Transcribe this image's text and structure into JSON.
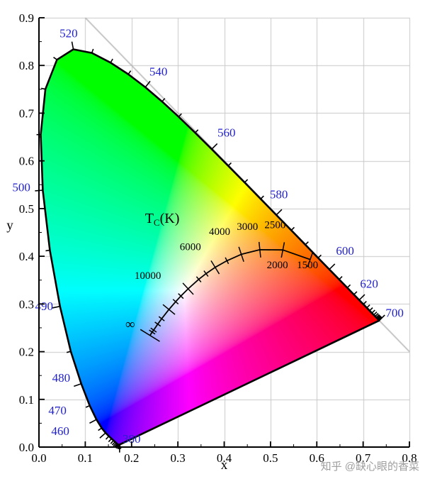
{
  "watermark": "知乎 @缺心眼的香菜",
  "chart_data": {
    "type": "area",
    "subtype": "CIE-1931-chromaticity-diagram",
    "title": "",
    "xlabel": "x",
    "ylabel": "y",
    "xlim": [
      0,
      0.8
    ],
    "ylim": [
      0,
      0.9
    ],
    "x_tick_labels": [
      "0.0",
      "0.1",
      "0.2",
      "0.3",
      "0.4",
      "0.5",
      "0.6",
      "0.7",
      "0.8"
    ],
    "y_tick_labels": [
      "0.0",
      "0.1",
      "0.2",
      "0.3",
      "0.4",
      "0.5",
      "0.6",
      "0.7",
      "0.8",
      "0.9"
    ],
    "grid": true,
    "diagonal_line": {
      "x1": 0.1,
      "y1": 0.9,
      "x2": 0.8,
      "y2": 0.2
    },
    "spectral_locus": [
      [
        380,
        0.1741,
        0.005
      ],
      [
        385,
        0.174,
        0.005
      ],
      [
        390,
        0.1738,
        0.0049
      ],
      [
        395,
        0.1736,
        0.0049
      ],
      [
        400,
        0.1733,
        0.0048
      ],
      [
        405,
        0.173,
        0.0048
      ],
      [
        410,
        0.1726,
        0.0048
      ],
      [
        415,
        0.1721,
        0.0048
      ],
      [
        420,
        0.1714,
        0.0051
      ],
      [
        425,
        0.1703,
        0.0058
      ],
      [
        430,
        0.1689,
        0.0069
      ],
      [
        435,
        0.1669,
        0.0086
      ],
      [
        440,
        0.1644,
        0.0109
      ],
      [
        445,
        0.1611,
        0.0138
      ],
      [
        450,
        0.1566,
        0.0177
      ],
      [
        455,
        0.151,
        0.0227
      ],
      [
        460,
        0.144,
        0.0297
      ],
      [
        465,
        0.1355,
        0.0399
      ],
      [
        470,
        0.1241,
        0.0578
      ],
      [
        475,
        0.1096,
        0.0868
      ],
      [
        480,
        0.0913,
        0.1327
      ],
      [
        485,
        0.0687,
        0.2007
      ],
      [
        490,
        0.0454,
        0.295
      ],
      [
        495,
        0.0235,
        0.4127
      ],
      [
        500,
        0.0082,
        0.5384
      ],
      [
        505,
        0.0039,
        0.6548
      ],
      [
        510,
        0.0139,
        0.7502
      ],
      [
        515,
        0.0389,
        0.812
      ],
      [
        520,
        0.0743,
        0.8338
      ],
      [
        525,
        0.1142,
        0.8262
      ],
      [
        530,
        0.1547,
        0.8059
      ],
      [
        535,
        0.1929,
        0.7816
      ],
      [
        540,
        0.2296,
        0.7543
      ],
      [
        545,
        0.2658,
        0.7243
      ],
      [
        550,
        0.3016,
        0.6923
      ],
      [
        555,
        0.3373,
        0.6589
      ],
      [
        560,
        0.3731,
        0.6245
      ],
      [
        565,
        0.4087,
        0.5896
      ],
      [
        570,
        0.4441,
        0.5547
      ],
      [
        575,
        0.4788,
        0.5202
      ],
      [
        580,
        0.5125,
        0.4866
      ],
      [
        585,
        0.5448,
        0.4544
      ],
      [
        590,
        0.5752,
        0.4242
      ],
      [
        595,
        0.6029,
        0.3965
      ],
      [
        600,
        0.627,
        0.3725
      ],
      [
        605,
        0.6482,
        0.3514
      ],
      [
        610,
        0.6658,
        0.334
      ],
      [
        615,
        0.6801,
        0.3197
      ],
      [
        620,
        0.6915,
        0.3083
      ],
      [
        625,
        0.7006,
        0.2993
      ],
      [
        630,
        0.7079,
        0.292
      ],
      [
        635,
        0.714,
        0.2859
      ],
      [
        640,
        0.719,
        0.2809
      ],
      [
        645,
        0.723,
        0.277
      ],
      [
        650,
        0.726,
        0.274
      ],
      [
        655,
        0.7283,
        0.2717
      ],
      [
        660,
        0.73,
        0.27
      ],
      [
        665,
        0.7311,
        0.2689
      ],
      [
        670,
        0.732,
        0.268
      ],
      [
        675,
        0.7327,
        0.2673
      ],
      [
        680,
        0.7334,
        0.2666
      ],
      [
        685,
        0.734,
        0.266
      ],
      [
        690,
        0.7344,
        0.2656
      ],
      [
        695,
        0.7346,
        0.2654
      ],
      [
        700,
        0.7347,
        0.2653
      ]
    ],
    "wavelength_labels": [
      {
        "text": "380",
        "x": 0.2,
        "y": 0.018
      },
      {
        "text": "460",
        "x": 0.046,
        "y": 0.034
      },
      {
        "text": "470",
        "x": 0.04,
        "y": 0.077
      },
      {
        "text": "480",
        "x": 0.048,
        "y": 0.146
      },
      {
        "text": "490",
        "x": 0.011,
        "y": 0.296
      },
      {
        "text": "500",
        "x": -0.038,
        "y": 0.545
      },
      {
        "text": "520",
        "x": 0.064,
        "y": 0.868
      },
      {
        "text": "540",
        "x": 0.258,
        "y": 0.788
      },
      {
        "text": "560",
        "x": 0.405,
        "y": 0.66
      },
      {
        "text": "580",
        "x": 0.518,
        "y": 0.53
      },
      {
        "text": "600",
        "x": 0.661,
        "y": 0.412
      },
      {
        "text": "620",
        "x": 0.713,
        "y": 0.343
      },
      {
        "text": "700",
        "x": 0.768,
        "y": 0.282
      }
    ],
    "planckian_locus": [
      [
        "inf",
        0.2399,
        0.234
      ],
      [
        40000,
        0.2444,
        0.2411
      ],
      [
        30000,
        0.2476,
        0.2452
      ],
      [
        20000,
        0.2565,
        0.2577
      ],
      [
        15000,
        0.265,
        0.269
      ],
      [
        10000,
        0.2807,
        0.2884
      ],
      [
        8000,
        0.2952,
        0.3048
      ],
      [
        7000,
        0.3064,
        0.3166
      ],
      [
        6000,
        0.3221,
        0.3318
      ],
      [
        5000,
        0.3451,
        0.3516
      ],
      [
        4500,
        0.3608,
        0.3636
      ],
      [
        4000,
        0.3805,
        0.3768
      ],
      [
        3500,
        0.4059,
        0.3907
      ],
      [
        3000,
        0.4369,
        0.4041
      ],
      [
        2500,
        0.477,
        0.4137
      ],
      [
        2000,
        0.5267,
        0.4133
      ],
      [
        1500,
        0.5857,
        0.3931
      ]
    ],
    "isotherm_ticks": [
      {
        "t": "inf",
        "len": 32
      },
      {
        "t": "40000",
        "len": 10
      },
      {
        "t": "30000",
        "len": 10
      },
      {
        "t": "20000",
        "len": 10
      },
      {
        "t": "15000",
        "len": 10
      },
      {
        "t": "10000",
        "len": 22
      },
      {
        "t": "8000",
        "len": 10
      },
      {
        "t": "7000",
        "len": 10
      },
      {
        "t": "6000",
        "len": 22
      },
      {
        "t": "5000",
        "len": 10
      },
      {
        "t": "4500",
        "len": 10
      },
      {
        "t": "4000",
        "len": 22
      },
      {
        "t": "3500",
        "len": 10
      },
      {
        "t": "3000",
        "len": 22
      },
      {
        "t": "2500",
        "len": 22
      },
      {
        "t": "2000",
        "len": 22
      },
      {
        "t": "1500",
        "len": 22
      }
    ],
    "temperature_labels": [
      {
        "text": "∞",
        "x": 0.197,
        "y": 0.256,
        "size": 19
      },
      {
        "text": "10000",
        "x": 0.235,
        "y": 0.36,
        "size": 15
      },
      {
        "text": "6000",
        "x": 0.327,
        "y": 0.42,
        "size": 15
      },
      {
        "text": "4000",
        "x": 0.39,
        "y": 0.452,
        "size": 15
      },
      {
        "text": "3000",
        "x": 0.45,
        "y": 0.463,
        "size": 15
      },
      {
        "text": "2500",
        "x": 0.51,
        "y": 0.466,
        "size": 15
      },
      {
        "text": "2000",
        "x": 0.515,
        "y": 0.382,
        "size": 15
      },
      {
        "text": "1500",
        "x": 0.58,
        "y": 0.382,
        "size": 15
      }
    ],
    "tc_label": {
      "main": "T",
      "sub": "C",
      "unit": "(K)",
      "x": 0.229,
      "y": 0.47
    },
    "colors": {
      "wavelength_label": "#2222cc",
      "locus_stroke": "#000000",
      "grid": "#c9c9c9",
      "diagonal": "#b3b3b3",
      "axis": "#000000",
      "watermark": "#9e9e9e"
    }
  }
}
